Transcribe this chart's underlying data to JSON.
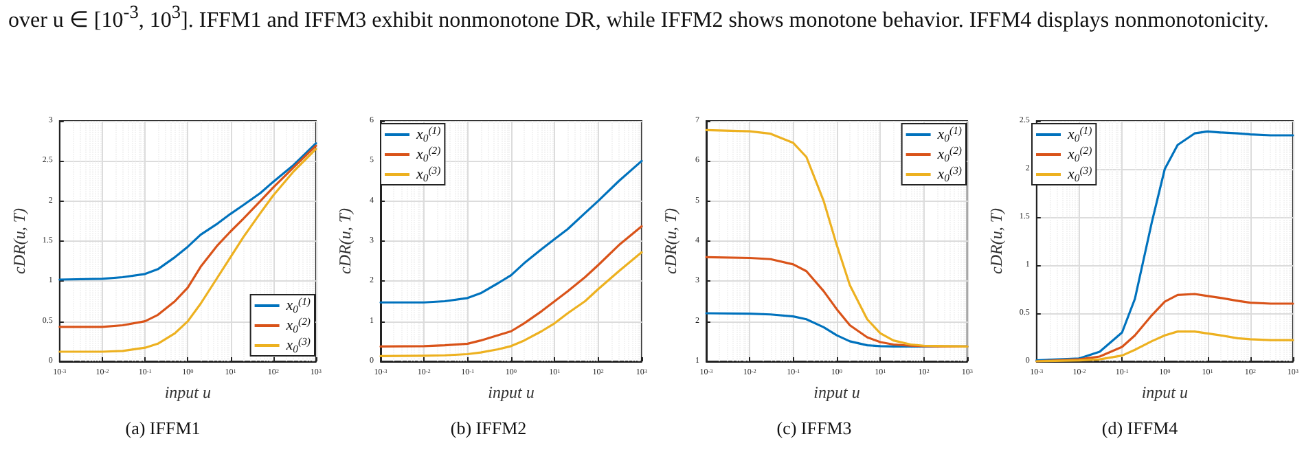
{
  "chart_data": [
    {
      "type": "line",
      "title": "(a) IFFM1",
      "xlabel": "input u",
      "ylabel": "cDR(u, T)",
      "annotations": [
        "over u ∈ [10$^{-3}$, 10$^{3}$]. IFFM1 and IFFM3 exhibit nonmonotone DR, while IFFM2 shows monotone behavior. IFFM4 displays nonmonotonicity."
      ],
      "x": [
        0.001,
        0.01,
        0.03,
        0.1,
        0.2,
        0.5,
        1,
        2,
        5,
        10,
        20,
        50,
        100,
        300,
        1000
      ],
      "series": [
        {
          "name": "x$_{0}$$^{(1)}$",
          "color": "#0072bd",
          "values": [
            1.02,
            1.03,
            1.05,
            1.09,
            1.15,
            1.3,
            1.43,
            1.58,
            1.72,
            1.84,
            1.95,
            2.1,
            2.24,
            2.45,
            2.72
          ]
        },
        {
          "name": "x$_{0}$$^{(2)}$",
          "color": "#d95319",
          "values": [
            0.43,
            0.43,
            0.45,
            0.5,
            0.58,
            0.75,
            0.92,
            1.18,
            1.45,
            1.62,
            1.78,
            2.0,
            2.17,
            2.42,
            2.69
          ]
        },
        {
          "name": "x$_{0}$$^{(3)}$",
          "color": "#edb120",
          "values": [
            0.12,
            0.12,
            0.13,
            0.17,
            0.22,
            0.35,
            0.5,
            0.72,
            1.05,
            1.3,
            1.55,
            1.85,
            2.07,
            2.37,
            2.65
          ]
        }
      ],
      "log": "x",
      "xlim": [
        0.001,
        1000
      ],
      "xticks": [
        {
          "value": 0.001,
          "label": "10$^{-3}$"
        },
        {
          "value": 0.01,
          "label": "10$^{-2}$"
        },
        {
          "value": 0.1,
          "label": "10$^{-1}$"
        },
        {
          "value": 1,
          "label": "10$^{0}$"
        },
        {
          "value": 10,
          "label": "10$^{1}$"
        },
        {
          "value": 100,
          "label": "10$^{2}$"
        },
        {
          "value": 1000,
          "label": "10$^{3}$"
        }
      ],
      "ylim": [
        0,
        3
      ],
      "yticks": [
        0,
        0.5,
        1,
        1.5,
        2,
        2.5,
        3
      ],
      "grid": true,
      "legend": "bottom right",
      "marker": "none",
      "line_style": "solid"
    },
    {
      "type": "line",
      "title": "(b) IFFM2",
      "xlabel": "input u",
      "ylabel": "cDR(u, T)",
      "x": [
        0.001,
        0.01,
        0.03,
        0.1,
        0.2,
        0.5,
        1,
        2,
        5,
        10,
        20,
        50,
        100,
        300,
        1000
      ],
      "series": [
        {
          "name": "x$_{0}$$^{(1)}$",
          "color": "#0072bd",
          "values": [
            1.47,
            1.47,
            1.5,
            1.58,
            1.7,
            1.95,
            2.15,
            2.45,
            2.8,
            3.05,
            3.3,
            3.7,
            4.0,
            4.5,
            5.0
          ]
        },
        {
          "name": "x$_{0}$$^{(2)}$",
          "color": "#d95319",
          "values": [
            0.37,
            0.38,
            0.4,
            0.44,
            0.52,
            0.65,
            0.75,
            0.95,
            1.25,
            1.5,
            1.75,
            2.1,
            2.4,
            2.9,
            3.37
          ]
        },
        {
          "name": "x$_{0}$$^{(3)}$",
          "color": "#edb120",
          "values": [
            0.13,
            0.14,
            0.15,
            0.18,
            0.22,
            0.3,
            0.38,
            0.52,
            0.75,
            0.95,
            1.2,
            1.5,
            1.8,
            2.25,
            2.72
          ]
        }
      ],
      "log": "x",
      "xlim": [
        0.001,
        1000
      ],
      "xticks": [
        {
          "value": 0.001,
          "label": "10$^{-3}$"
        },
        {
          "value": 0.01,
          "label": "10$^{-2}$"
        },
        {
          "value": 0.1,
          "label": "10$^{-1}$"
        },
        {
          "value": 1,
          "label": "10$^{0}$"
        },
        {
          "value": 10,
          "label": "10$^{1}$"
        },
        {
          "value": 100,
          "label": "10$^{2}$"
        },
        {
          "value": 1000,
          "label": "10$^{3}$"
        }
      ],
      "ylim": [
        0,
        6
      ],
      "yticks": [
        0,
        1,
        2,
        3,
        4,
        5,
        6
      ],
      "grid": true,
      "legend": "top left",
      "marker": "none",
      "line_style": "solid"
    },
    {
      "type": "line",
      "title": "(c) IFFM3",
      "xlabel": "input u",
      "ylabel": "cDR(u, T)",
      "x": [
        0.001,
        0.01,
        0.03,
        0.1,
        0.2,
        0.5,
        1,
        2,
        5,
        10,
        20,
        50,
        100,
        300,
        1000
      ],
      "series": [
        {
          "name": "x$_{0}$$^{(1)}$",
          "color": "#0072bd",
          "values": [
            2.2,
            2.19,
            2.17,
            2.12,
            2.05,
            1.85,
            1.65,
            1.5,
            1.4,
            1.38,
            1.37,
            1.37,
            1.37,
            1.37,
            1.37
          ]
        },
        {
          "name": "x$_{0}$$^{(2)}$",
          "color": "#d95319",
          "values": [
            3.6,
            3.58,
            3.55,
            3.42,
            3.25,
            2.75,
            2.3,
            1.9,
            1.6,
            1.48,
            1.42,
            1.39,
            1.38,
            1.37,
            1.37
          ]
        },
        {
          "name": "x$_{0}$$^{(3)}$",
          "color": "#edb120",
          "values": [
            6.77,
            6.74,
            6.68,
            6.45,
            6.1,
            5.0,
            3.9,
            2.9,
            2.05,
            1.7,
            1.52,
            1.42,
            1.39,
            1.38,
            1.37
          ]
        }
      ],
      "log": "x",
      "xlim": [
        0.001,
        1000
      ],
      "xticks": [
        {
          "value": 0.001,
          "label": "10$^{-3}$"
        },
        {
          "value": 0.01,
          "label": "10$^{-2}$"
        },
        {
          "value": 0.1,
          "label": "10$^{-1}$"
        },
        {
          "value": 1,
          "label": "10$^{0}$"
        },
        {
          "value": 10,
          "label": "10$^{1}$"
        },
        {
          "value": 100,
          "label": "10$^{2}$"
        },
        {
          "value": 1000,
          "label": "10$^{3}$"
        }
      ],
      "ylim": [
        1,
        7
      ],
      "yticks": [
        1,
        2,
        3,
        4,
        5,
        6,
        7
      ],
      "grid": true,
      "legend": "top right",
      "marker": "none",
      "line_style": "solid"
    },
    {
      "type": "line",
      "title": "(d) IFFM4",
      "xlabel": "input u",
      "ylabel": "cDR(u, T)",
      "x": [
        0.001,
        0.01,
        0.03,
        0.1,
        0.2,
        0.5,
        1,
        2,
        5,
        10,
        20,
        50,
        100,
        300,
        1000
      ],
      "series": [
        {
          "name": "x$_{0}$$^{(1)}$",
          "color": "#0072bd",
          "values": [
            0.01,
            0.03,
            0.1,
            0.3,
            0.65,
            1.45,
            2.0,
            2.25,
            2.37,
            2.39,
            2.38,
            2.37,
            2.36,
            2.35,
            2.35
          ]
        },
        {
          "name": "x$_{0}$$^{(2)}$",
          "color": "#d95319",
          "values": [
            0.0,
            0.02,
            0.05,
            0.15,
            0.27,
            0.48,
            0.62,
            0.69,
            0.7,
            0.68,
            0.66,
            0.63,
            0.61,
            0.6,
            0.6
          ]
        },
        {
          "name": "x$_{0}$$^{(3)}$",
          "color": "#edb120",
          "values": [
            0.0,
            0.01,
            0.02,
            0.06,
            0.12,
            0.21,
            0.27,
            0.31,
            0.31,
            0.29,
            0.27,
            0.24,
            0.23,
            0.22,
            0.22
          ]
        }
      ],
      "log": "x",
      "xlim": [
        0.001,
        1000
      ],
      "xticks": [
        {
          "value": 0.001,
          "label": "10$^{-3}$"
        },
        {
          "value": 0.01,
          "label": "10$^{-2}$"
        },
        {
          "value": 0.1,
          "label": "10$^{-1}$"
        },
        {
          "value": 1,
          "label": "10$^{0}$"
        },
        {
          "value": 10,
          "label": "10$^{1}$"
        },
        {
          "value": 100,
          "label": "10$^{2}$"
        },
        {
          "value": 1000,
          "label": "10$^{3}$"
        }
      ],
      "ylim": [
        0,
        2.5
      ],
      "yticks": [
        0,
        0.5,
        1,
        1.5,
        2,
        2.5
      ],
      "grid": true,
      "legend": "top left",
      "marker": "none",
      "line_style": "solid"
    }
  ]
}
